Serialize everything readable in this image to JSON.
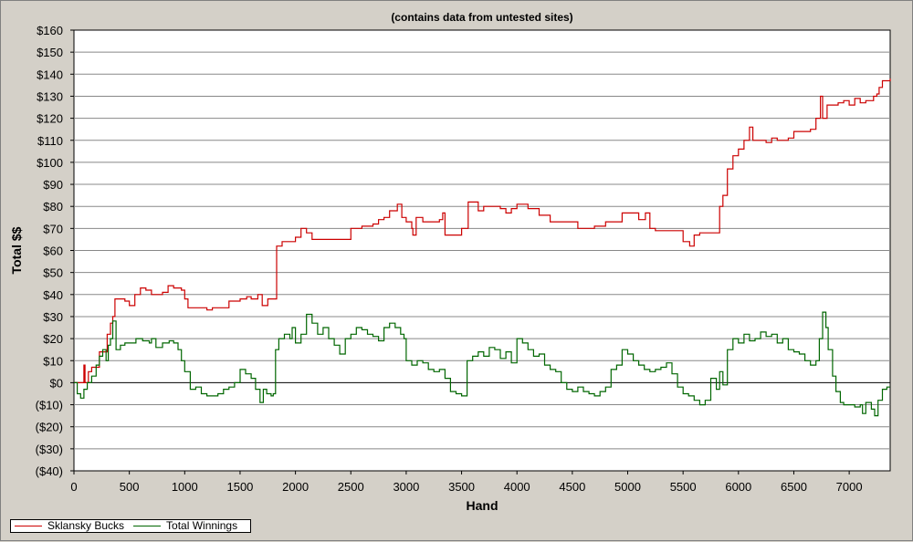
{
  "chart_data": {
    "type": "line",
    "title": "(contains data from untested sites)",
    "xlabel": "Hand",
    "ylabel": "Total $$",
    "xlim": [
      0,
      7370
    ],
    "ylim": [
      -40,
      160
    ],
    "x_ticks": [
      0,
      500,
      1000,
      1500,
      2000,
      2500,
      3000,
      3500,
      4000,
      4500,
      5000,
      5500,
      6000,
      6500,
      7000
    ],
    "y_ticks": [
      "$160",
      "$150",
      "$140",
      "$130",
      "$120",
      "$110",
      "$100",
      "$90",
      "$80",
      "$70",
      "$60",
      "$50",
      "$40",
      "$30",
      "$20",
      "$10",
      "$0",
      "($10)",
      "($20)",
      "($30)",
      "($40)"
    ],
    "grid": true,
    "legend_position": "bottom-left",
    "series": [
      {
        "name": "Sklansky Bucks",
        "color": "#cc0000",
        "points": [
          [
            0,
            0
          ],
          [
            60,
            0
          ],
          [
            90,
            8
          ],
          [
            100,
            0
          ],
          [
            130,
            5
          ],
          [
            160,
            7
          ],
          [
            200,
            7
          ],
          [
            230,
            14
          ],
          [
            260,
            14
          ],
          [
            300,
            22
          ],
          [
            330,
            27
          ],
          [
            350,
            30
          ],
          [
            370,
            38
          ],
          [
            420,
            38
          ],
          [
            460,
            37
          ],
          [
            500,
            35
          ],
          [
            550,
            40
          ],
          [
            600,
            43
          ],
          [
            650,
            42
          ],
          [
            700,
            40
          ],
          [
            750,
            40
          ],
          [
            800,
            41
          ],
          [
            850,
            44
          ],
          [
            900,
            43
          ],
          [
            970,
            42
          ],
          [
            1000,
            38
          ],
          [
            1030,
            34
          ],
          [
            1150,
            34
          ],
          [
            1200,
            33
          ],
          [
            1250,
            34
          ],
          [
            1400,
            37
          ],
          [
            1500,
            38
          ],
          [
            1560,
            39
          ],
          [
            1600,
            38
          ],
          [
            1660,
            40
          ],
          [
            1700,
            35
          ],
          [
            1750,
            38
          ],
          [
            1800,
            38
          ],
          [
            1830,
            62
          ],
          [
            1880,
            64
          ],
          [
            1950,
            64
          ],
          [
            2000,
            66
          ],
          [
            2050,
            70
          ],
          [
            2100,
            68
          ],
          [
            2150,
            65
          ],
          [
            2300,
            65
          ],
          [
            2400,
            65
          ],
          [
            2500,
            70
          ],
          [
            2600,
            71
          ],
          [
            2700,
            72
          ],
          [
            2750,
            74
          ],
          [
            2800,
            75
          ],
          [
            2850,
            78
          ],
          [
            2900,
            78
          ],
          [
            2920,
            81
          ],
          [
            2960,
            75
          ],
          [
            3000,
            73
          ],
          [
            3050,
            70
          ],
          [
            3060,
            67
          ],
          [
            3090,
            75
          ],
          [
            3150,
            73
          ],
          [
            3300,
            74
          ],
          [
            3330,
            77
          ],
          [
            3350,
            67
          ],
          [
            3450,
            67
          ],
          [
            3500,
            70
          ],
          [
            3560,
            82
          ],
          [
            3650,
            78
          ],
          [
            3700,
            80
          ],
          [
            3800,
            80
          ],
          [
            3850,
            79
          ],
          [
            3900,
            77
          ],
          [
            3950,
            79
          ],
          [
            4000,
            81
          ],
          [
            4100,
            79
          ],
          [
            4200,
            76
          ],
          [
            4300,
            73
          ],
          [
            4500,
            73
          ],
          [
            4550,
            70
          ],
          [
            4700,
            71
          ],
          [
            4800,
            73
          ],
          [
            4900,
            73
          ],
          [
            4950,
            77
          ],
          [
            5050,
            77
          ],
          [
            5100,
            74
          ],
          [
            5160,
            77
          ],
          [
            5200,
            70
          ],
          [
            5250,
            69
          ],
          [
            5400,
            69
          ],
          [
            5480,
            69
          ],
          [
            5500,
            64
          ],
          [
            5560,
            62
          ],
          [
            5600,
            67
          ],
          [
            5650,
            68
          ],
          [
            5800,
            68
          ],
          [
            5830,
            80
          ],
          [
            5860,
            85
          ],
          [
            5900,
            97
          ],
          [
            5950,
            103
          ],
          [
            6000,
            106
          ],
          [
            6050,
            110
          ],
          [
            6100,
            116
          ],
          [
            6130,
            110
          ],
          [
            6250,
            109
          ],
          [
            6300,
            111
          ],
          [
            6350,
            110
          ],
          [
            6450,
            111
          ],
          [
            6500,
            114
          ],
          [
            6650,
            115
          ],
          [
            6700,
            120
          ],
          [
            6740,
            130
          ],
          [
            6760,
            120
          ],
          [
            6800,
            126
          ],
          [
            6900,
            127
          ],
          [
            6950,
            128
          ],
          [
            7000,
            126
          ],
          [
            7050,
            129
          ],
          [
            7100,
            127
          ],
          [
            7150,
            128
          ],
          [
            7220,
            130
          ],
          [
            7250,
            131
          ],
          [
            7270,
            134
          ],
          [
            7300,
            137
          ],
          [
            7370,
            138
          ]
        ]
      },
      {
        "name": "Total Winnings",
        "color": "#006600",
        "points": [
          [
            0,
            0
          ],
          [
            30,
            -5
          ],
          [
            60,
            -7
          ],
          [
            90,
            -3
          ],
          [
            120,
            0
          ],
          [
            160,
            3
          ],
          [
            200,
            8
          ],
          [
            230,
            12
          ],
          [
            260,
            15
          ],
          [
            290,
            10
          ],
          [
            310,
            17
          ],
          [
            330,
            20
          ],
          [
            350,
            28
          ],
          [
            380,
            15
          ],
          [
            420,
            17
          ],
          [
            460,
            18
          ],
          [
            500,
            18
          ],
          [
            560,
            20
          ],
          [
            620,
            19
          ],
          [
            680,
            18
          ],
          [
            700,
            20
          ],
          [
            740,
            16
          ],
          [
            800,
            18
          ],
          [
            860,
            19
          ],
          [
            900,
            18
          ],
          [
            940,
            15
          ],
          [
            970,
            10
          ],
          [
            1000,
            5
          ],
          [
            1050,
            -3
          ],
          [
            1100,
            -2
          ],
          [
            1150,
            -5
          ],
          [
            1200,
            -6
          ],
          [
            1250,
            -6
          ],
          [
            1300,
            -5
          ],
          [
            1350,
            -3
          ],
          [
            1400,
            -2
          ],
          [
            1450,
            0
          ],
          [
            1500,
            6
          ],
          [
            1550,
            4
          ],
          [
            1600,
            2
          ],
          [
            1640,
            -3
          ],
          [
            1680,
            -9
          ],
          [
            1710,
            -3
          ],
          [
            1740,
            -5
          ],
          [
            1780,
            -6
          ],
          [
            1800,
            -5
          ],
          [
            1820,
            15
          ],
          [
            1850,
            20
          ],
          [
            1900,
            22
          ],
          [
            1950,
            20
          ],
          [
            1970,
            25
          ],
          [
            2000,
            18
          ],
          [
            2050,
            22
          ],
          [
            2100,
            31
          ],
          [
            2150,
            27
          ],
          [
            2200,
            22
          ],
          [
            2250,
            25
          ],
          [
            2300,
            20
          ],
          [
            2350,
            17
          ],
          [
            2400,
            13
          ],
          [
            2450,
            20
          ],
          [
            2500,
            22
          ],
          [
            2550,
            25
          ],
          [
            2600,
            24
          ],
          [
            2650,
            22
          ],
          [
            2700,
            21
          ],
          [
            2750,
            19
          ],
          [
            2800,
            25
          ],
          [
            2850,
            27
          ],
          [
            2900,
            25
          ],
          [
            2950,
            22
          ],
          [
            2980,
            20
          ],
          [
            3000,
            10
          ],
          [
            3050,
            8
          ],
          [
            3100,
            10
          ],
          [
            3150,
            9
          ],
          [
            3200,
            6
          ],
          [
            3250,
            5
          ],
          [
            3300,
            6
          ],
          [
            3350,
            2
          ],
          [
            3400,
            -4
          ],
          [
            3450,
            -5
          ],
          [
            3500,
            -6
          ],
          [
            3550,
            10
          ],
          [
            3600,
            12
          ],
          [
            3650,
            14
          ],
          [
            3700,
            12
          ],
          [
            3750,
            16
          ],
          [
            3800,
            15
          ],
          [
            3850,
            11
          ],
          [
            3900,
            14
          ],
          [
            3950,
            9
          ],
          [
            4000,
            20
          ],
          [
            4050,
            18
          ],
          [
            4100,
            15
          ],
          [
            4150,
            12
          ],
          [
            4200,
            13
          ],
          [
            4250,
            8
          ],
          [
            4300,
            6
          ],
          [
            4350,
            5
          ],
          [
            4400,
            0
          ],
          [
            4450,
            -3
          ],
          [
            4500,
            -4
          ],
          [
            4550,
            -2
          ],
          [
            4600,
            -4
          ],
          [
            4650,
            -5
          ],
          [
            4700,
            -6
          ],
          [
            4750,
            -4
          ],
          [
            4800,
            -2
          ],
          [
            4850,
            6
          ],
          [
            4900,
            8
          ],
          [
            4950,
            15
          ],
          [
            5000,
            13
          ],
          [
            5050,
            10
          ],
          [
            5100,
            8
          ],
          [
            5150,
            6
          ],
          [
            5200,
            5
          ],
          [
            5250,
            6
          ],
          [
            5300,
            7
          ],
          [
            5350,
            9
          ],
          [
            5400,
            4
          ],
          [
            5450,
            -2
          ],
          [
            5500,
            -5
          ],
          [
            5550,
            -6
          ],
          [
            5600,
            -8
          ],
          [
            5650,
            -10
          ],
          [
            5700,
            -8
          ],
          [
            5750,
            2
          ],
          [
            5800,
            -3
          ],
          [
            5830,
            5
          ],
          [
            5860,
            -1
          ],
          [
            5900,
            15
          ],
          [
            5950,
            20
          ],
          [
            6000,
            18
          ],
          [
            6050,
            22
          ],
          [
            6100,
            19
          ],
          [
            6150,
            20
          ],
          [
            6200,
            23
          ],
          [
            6250,
            21
          ],
          [
            6300,
            22
          ],
          [
            6350,
            18
          ],
          [
            6400,
            20
          ],
          [
            6450,
            15
          ],
          [
            6500,
            14
          ],
          [
            6550,
            13
          ],
          [
            6600,
            10
          ],
          [
            6650,
            8
          ],
          [
            6700,
            10
          ],
          [
            6730,
            20
          ],
          [
            6760,
            32
          ],
          [
            6790,
            25
          ],
          [
            6810,
            15
          ],
          [
            6850,
            3
          ],
          [
            6880,
            -4
          ],
          [
            6920,
            -9
          ],
          [
            6950,
            -10
          ],
          [
            7000,
            -10
          ],
          [
            7050,
            -11
          ],
          [
            7100,
            -10
          ],
          [
            7120,
            -14
          ],
          [
            7150,
            -9
          ],
          [
            7200,
            -12
          ],
          [
            7230,
            -15
          ],
          [
            7260,
            -8
          ],
          [
            7300,
            -3
          ],
          [
            7340,
            -2
          ],
          [
            7370,
            -2
          ]
        ]
      }
    ]
  }
}
